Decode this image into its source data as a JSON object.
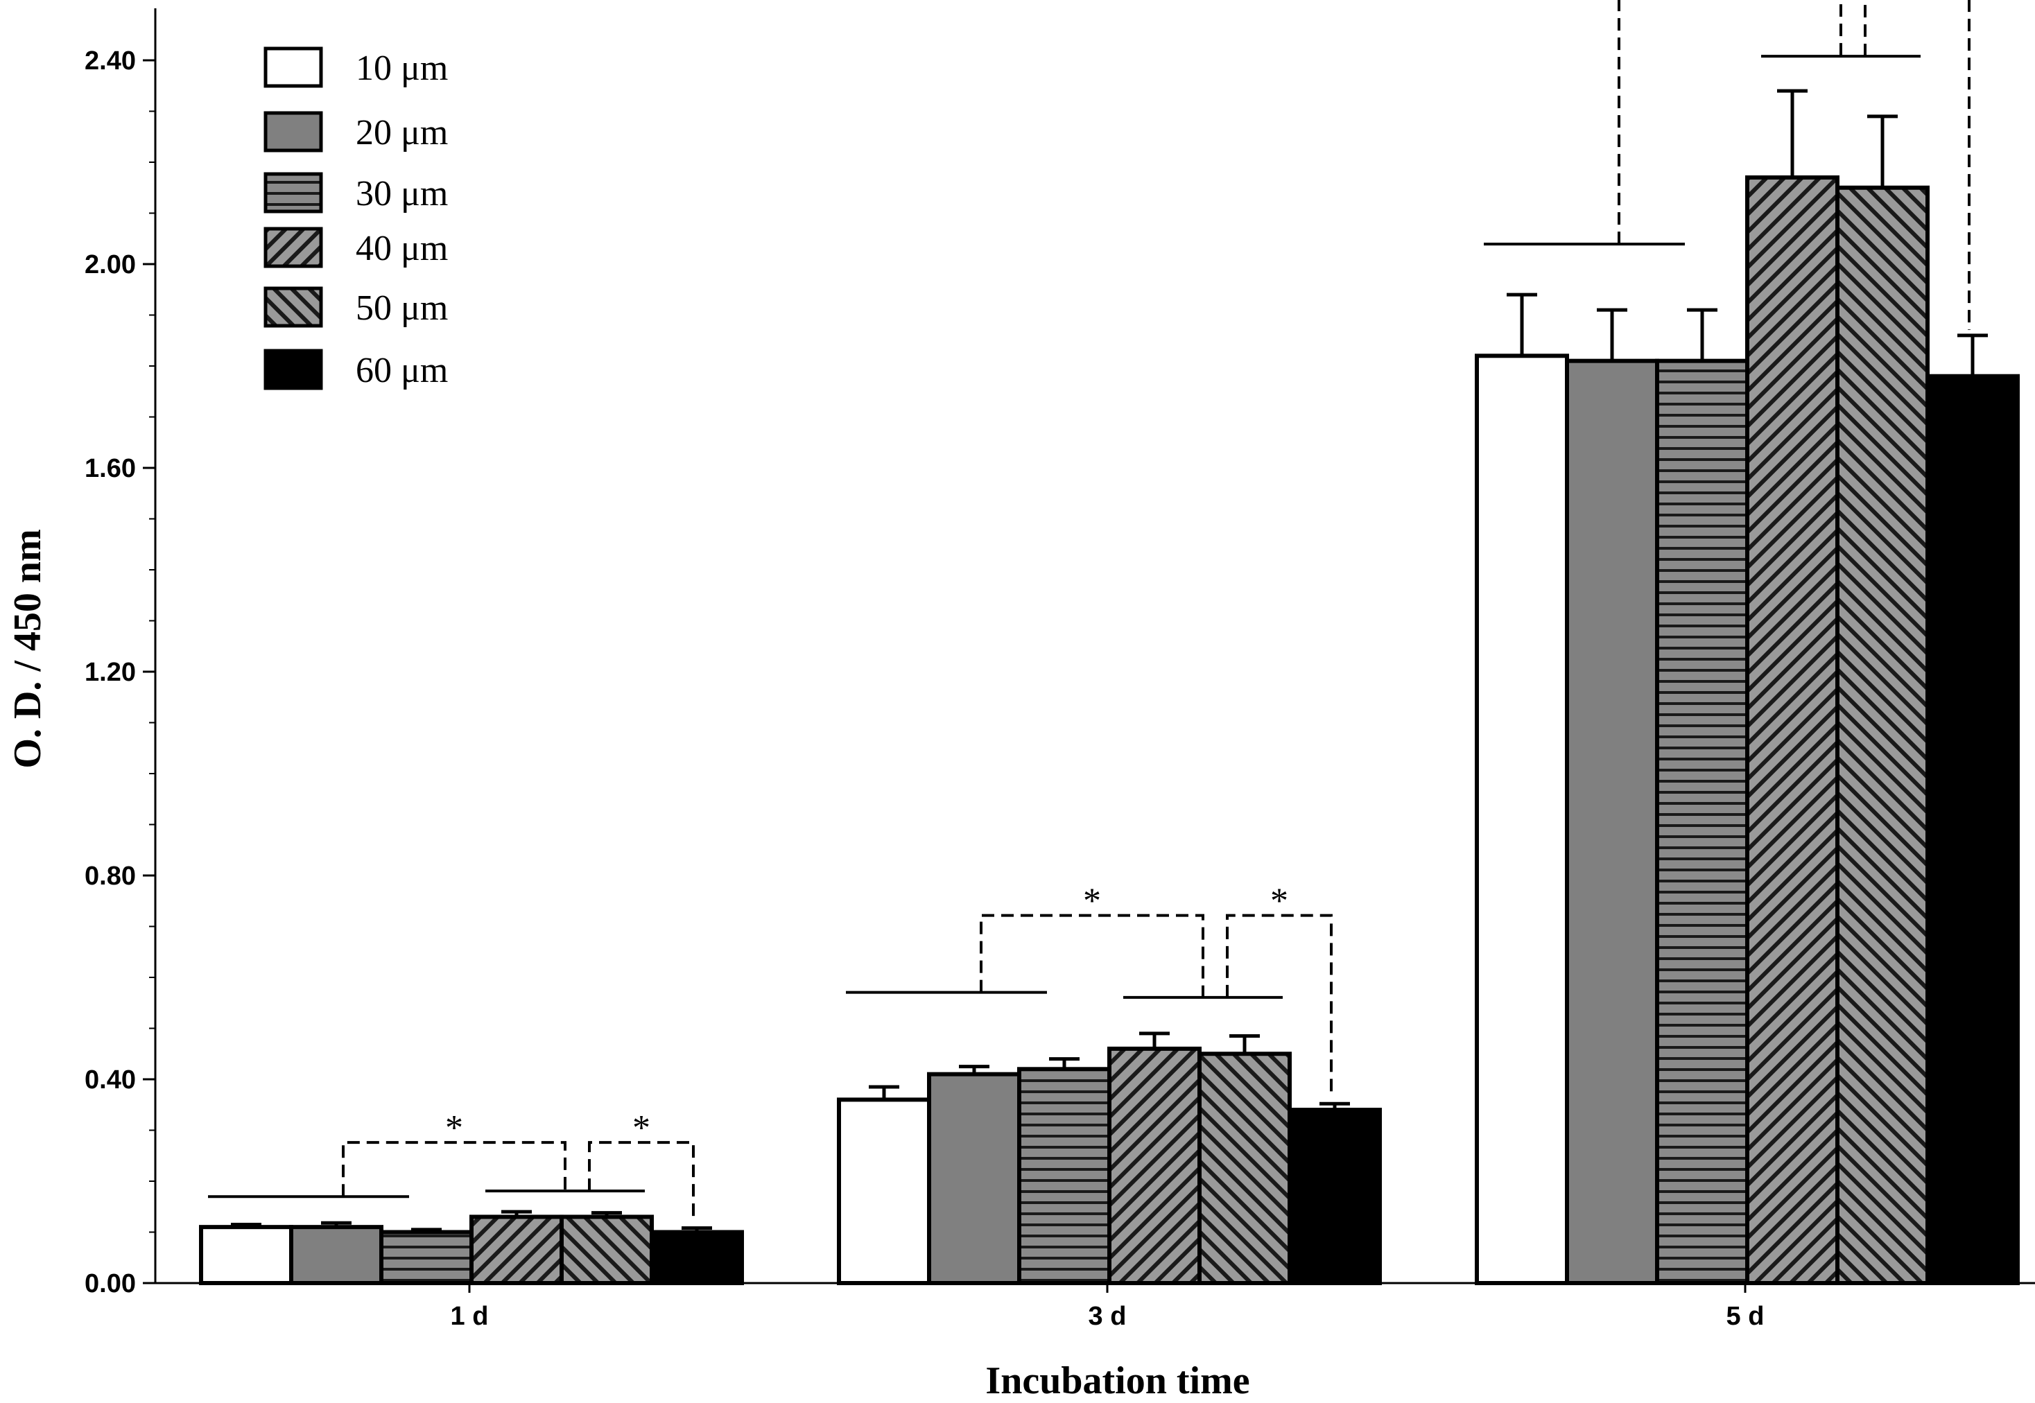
{
  "chart_data": {
    "type": "bar",
    "title": "",
    "xlabel": "Incubation time",
    "ylabel": "O. D. / 450 nm",
    "ylim": [
      0,
      2.5
    ],
    "yticks": [
      "0.00",
      "0.40",
      "0.80",
      "1.20",
      "1.60",
      "2.00",
      "2.40"
    ],
    "grid": false,
    "legend_position": "top-left",
    "categories": [
      "1 d",
      "3 d",
      "5 d"
    ],
    "series": [
      {
        "name": "10 μm",
        "pattern": "white",
        "values": [
          0.11,
          0.36,
          1.82
        ],
        "errors": [
          0.005,
          0.025,
          0.12
        ]
      },
      {
        "name": "20 μm",
        "pattern": "gray",
        "values": [
          0.11,
          0.41,
          1.81
        ],
        "errors": [
          0.008,
          0.015,
          0.1
        ]
      },
      {
        "name": "30 μm",
        "pattern": "horizontal",
        "values": [
          0.1,
          0.42,
          1.81
        ],
        "errors": [
          0.005,
          0.02,
          0.1
        ]
      },
      {
        "name": "40 μm",
        "pattern": "diag-right",
        "values": [
          0.13,
          0.46,
          2.17
        ],
        "errors": [
          0.01,
          0.03,
          0.17
        ]
      },
      {
        "name": "50 μm",
        "pattern": "diag-left",
        "values": [
          0.13,
          0.45,
          2.15
        ],
        "errors": [
          0.008,
          0.035,
          0.14
        ]
      },
      {
        "name": "60 μm",
        "pattern": "black",
        "values": [
          0.1,
          0.34,
          1.78
        ],
        "errors": [
          0.008,
          0.012,
          0.08
        ]
      }
    ],
    "significance_marker": "*",
    "colors": {
      "gray": "#808080",
      "black": "#000000",
      "white": "#ffffff"
    }
  }
}
